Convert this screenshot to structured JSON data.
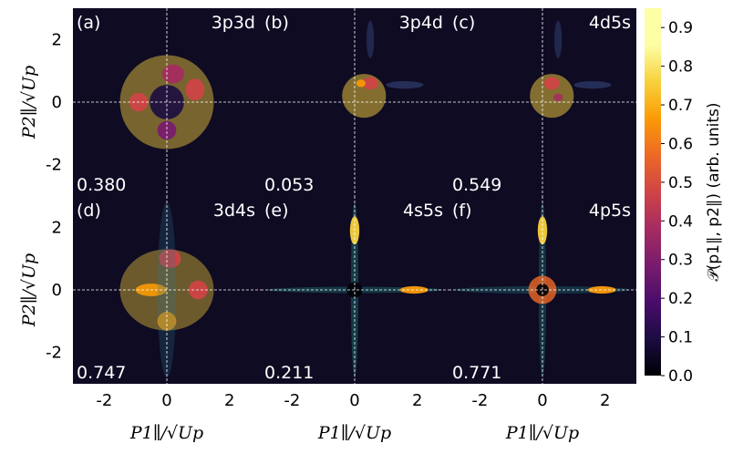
{
  "chart_data": {
    "type": "heatmap",
    "layout": "2x3 grid of panels",
    "xlabel": "P1∥/√Up",
    "ylabel": "P2∥/√Up",
    "xlim": [
      -3,
      3
    ],
    "ylim": [
      -3,
      3
    ],
    "xticks": [
      "-2",
      "0",
      "2"
    ],
    "yticks": [
      "2",
      "0",
      "-2"
    ],
    "grid": "dashed white lines at 0",
    "colormap": "inferno_r",
    "colorbar": {
      "label": "𝒫(p1∥, p2∥) (arb. units)",
      "range": [
        0,
        0.95
      ],
      "ticks": [
        "0.0",
        "0.1",
        "0.2",
        "0.3",
        "0.4",
        "0.5",
        "0.6",
        "0.7",
        "0.8",
        "0.9"
      ]
    },
    "panels": [
      {
        "tag": "(a)",
        "state": "3p3d",
        "value": "0.380"
      },
      {
        "tag": "(b)",
        "state": "3p4d",
        "value": "0.053"
      },
      {
        "tag": "(c)",
        "state": "4d5s",
        "value": "0.549"
      },
      {
        "tag": "(d)",
        "state": "3d4s",
        "value": "0.747"
      },
      {
        "tag": "(e)",
        "state": "4s5s",
        "value": "0.211"
      },
      {
        "tag": "(f)",
        "state": "4p5s",
        "value": "0.771"
      }
    ]
  }
}
